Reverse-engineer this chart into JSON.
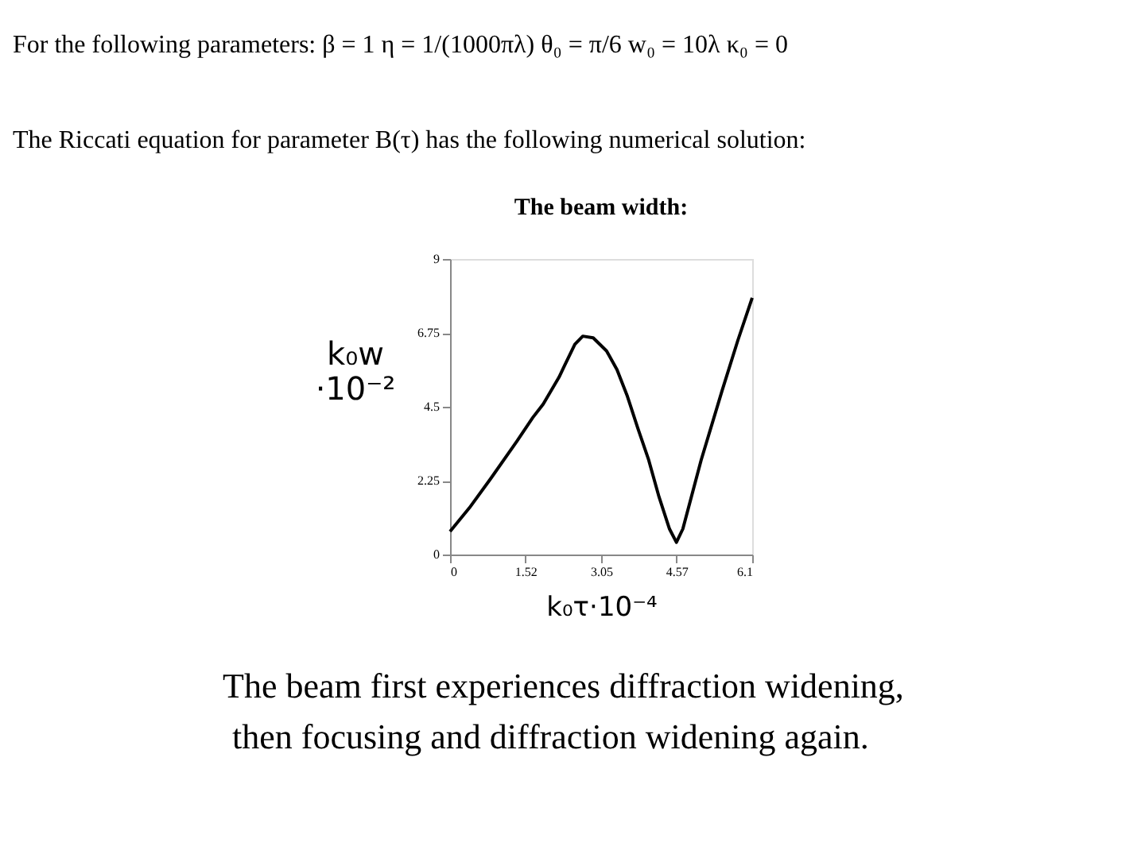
{
  "chart_data": {
    "type": "line",
    "title": "The beam width:",
    "xlabel": "k₀τ·10⁻⁴",
    "ylabel": "k₀w ·10⁻²",
    "annotations": [
      "For the following parameters:   β = 1    η = 1/(1000πλ)    θ₀ = π/6    w₀ = 10λ    κ₀ = 0",
      "The Riccati equation for parameter   B(τ)   has the following numerical solution:",
      "The beam first experiences diffraction widening,",
      "then focusing and diffraction widening again."
    ],
    "x": [
      0,
      0.39,
      0.82,
      1.35,
      1.67,
      1.88,
      2.2,
      2.31,
      2.52,
      2.68,
      2.89,
      3.16,
      3.37,
      3.58,
      3.79,
      4.01,
      4.22,
      4.43,
      4.57,
      4.7,
      5.07,
      5.49,
      5.81,
      6.1
    ],
    "series": [
      {
        "color": "#000000",
        "values": [
          0.7,
          1.42,
          2.31,
          3.45,
          4.17,
          4.58,
          5.4,
          5.75,
          6.4,
          6.65,
          6.6,
          6.2,
          5.63,
          4.82,
          3.85,
          2.88,
          1.75,
          0.78,
          0.37,
          0.78,
          2.88,
          4.98,
          6.52,
          7.82
        ]
      }
    ],
    "xlim": [
      0,
      6.1
    ],
    "ylim": [
      0,
      9
    ],
    "xticks": [
      0,
      1.52,
      3.05,
      4.57,
      6.1
    ],
    "yticks": [
      0,
      2.25,
      4.5,
      6.75,
      9
    ]
  }
}
